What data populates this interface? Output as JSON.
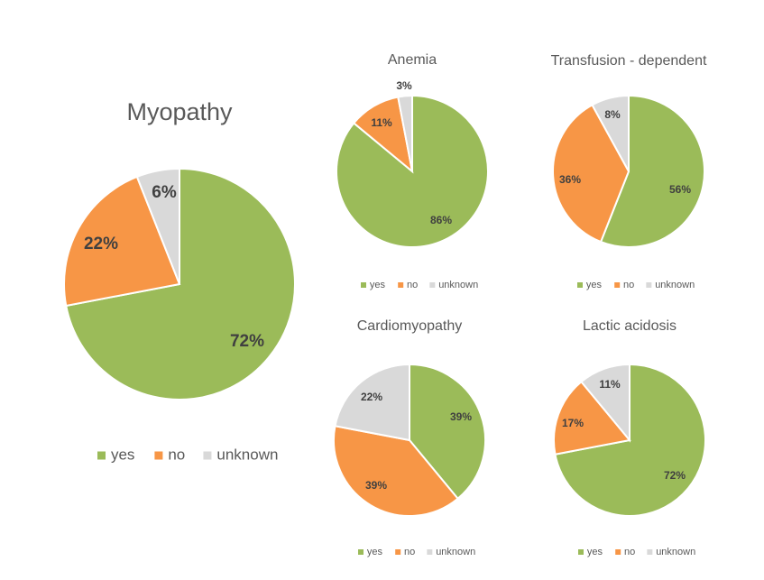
{
  "colors": {
    "yes": "#9bbb59",
    "no": "#f79646",
    "unknown": "#d9d9d9"
  },
  "chart_data": [
    {
      "type": "pie",
      "title": "Myopathy",
      "slices": [
        {
          "label": "yes",
          "value": 72,
          "text": "72%"
        },
        {
          "label": "no",
          "value": 22,
          "text": "22%"
        },
        {
          "label": "unknown",
          "value": 6,
          "text": "6%"
        }
      ],
      "legend": [
        "yes",
        "no",
        "unknown"
      ],
      "legend_position": "bottom"
    },
    {
      "type": "pie",
      "title": "Anemia",
      "slices": [
        {
          "label": "yes",
          "value": 86,
          "text": "86%"
        },
        {
          "label": "no",
          "value": 11,
          "text": "11%"
        },
        {
          "label": "unknown",
          "value": 3,
          "text": "3%"
        }
      ],
      "legend": [
        "yes",
        "no",
        "unknown"
      ],
      "legend_position": "bottom"
    },
    {
      "type": "pie",
      "title": "Transfusion - dependent",
      "slices": [
        {
          "label": "yes",
          "value": 56,
          "text": "56%"
        },
        {
          "label": "no",
          "value": 36,
          "text": "36%"
        },
        {
          "label": "unknown",
          "value": 8,
          "text": "8%"
        }
      ],
      "legend": [
        "yes",
        "no",
        "unknown"
      ],
      "legend_position": "bottom"
    },
    {
      "type": "pie",
      "title": "Cardiomyopathy",
      "slices": [
        {
          "label": "yes",
          "value": 39,
          "text": "39%"
        },
        {
          "label": "no",
          "value": 39,
          "text": "39%"
        },
        {
          "label": "unknown",
          "value": 22,
          "text": "22%"
        }
      ],
      "legend": [
        "yes",
        "no",
        "unknown"
      ],
      "legend_position": "bottom"
    },
    {
      "type": "pie",
      "title": "Lactic acidosis",
      "slices": [
        {
          "label": "yes",
          "value": 72,
          "text": "72%"
        },
        {
          "label": "no",
          "value": 17,
          "text": "17%"
        },
        {
          "label": "unknown",
          "value": 11,
          "text": "11%"
        }
      ],
      "legend": [
        "yes",
        "no",
        "unknown"
      ],
      "legend_position": "bottom"
    }
  ]
}
